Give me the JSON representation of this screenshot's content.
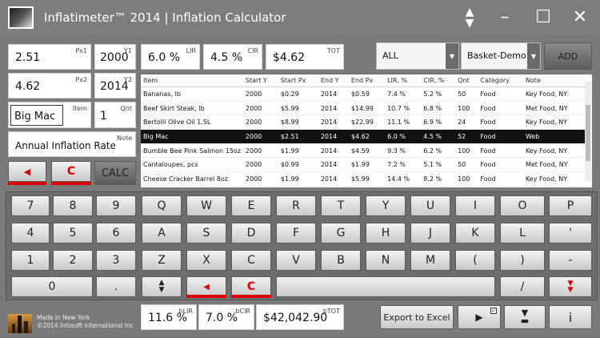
{
  "titlebar": {
    "title": "Inflatimeter™ 2014 | Inflation Calculator"
  },
  "inputs": {
    "px1": {
      "label": "Px1",
      "value": "2.51"
    },
    "y1": {
      "label": "Y1",
      "value": "2000"
    },
    "px2": {
      "label": "Px2",
      "value": "4.62"
    },
    "y2": {
      "label": "Y2",
      "value": "2014"
    },
    "item": {
      "label": "Item",
      "value": "Big Mac"
    },
    "qnt": {
      "label": "Qnt",
      "value": "1"
    },
    "note": {
      "label": "Note",
      "value": "Annual Inflation Rate"
    }
  },
  "results": {
    "lir": {
      "label": "LIR",
      "value": "6.0 %"
    },
    "cir": {
      "label": "CIR",
      "value": "4.5 %"
    },
    "tot": {
      "label": "TOT",
      "value": "$4.62"
    }
  },
  "basket": {
    "filter_selected": "ALL",
    "basket_selected": "Basket-Demo",
    "add_label": "ADD"
  },
  "actions": {
    "calc_label": "CALC",
    "clear_label": "C"
  },
  "table": {
    "columns": [
      "Item",
      "Start Y",
      "Start Px",
      "End Y",
      "End Px",
      "LIR, %",
      "CIR, %",
      "Qnt",
      "Category",
      "Note"
    ],
    "rows": [
      [
        "Bananas, lb",
        "2000",
        "$0.29",
        "2014",
        "$0.59",
        "7.4 %",
        "5.2 %",
        "50",
        "Food",
        "Key Food, NY"
      ],
      [
        "Beef Skirt Steak, lb",
        "2000",
        "$5.99",
        "2014",
        "$14.99",
        "10.7 %",
        "6.8 %",
        "100",
        "Food",
        "Met Food, NY"
      ],
      [
        "Bertolli Olive Oil 1.5L",
        "2000",
        "$8.99",
        "2014",
        "$22.99",
        "11.1 %",
        "6.9 %",
        "24",
        "Food",
        "Key Food, NY"
      ],
      [
        "Big Mac",
        "2000",
        "$2.51",
        "2014",
        "$4.62",
        "6.0 %",
        "4.5 %",
        "52",
        "Food",
        "Web"
      ],
      [
        "Bumble Bee Pink Salmon 15oz",
        "2000",
        "$1.99",
        "2014",
        "$4.59",
        "9.3 %",
        "6.2 %",
        "100",
        "Food",
        "Key Food, NY"
      ],
      [
        "Cantaloupes, pcs",
        "2000",
        "$0.99",
        "2014",
        "$1.99",
        "7.2 %",
        "5.1 %",
        "50",
        "Food",
        "Met Food, NY"
      ],
      [
        "Cheese Cracker Barrel 8oz",
        "2000",
        "$1.99",
        "2014",
        "$5.99",
        "14.4 %",
        "8.2 %",
        "100",
        "Food",
        "Key Food, NY"
      ]
    ]
  },
  "keypad": {
    "numeric": [
      "7",
      "8",
      "9",
      "4",
      "5",
      "6",
      "1",
      "2",
      "3",
      "0",
      "."
    ],
    "row1": [
      "Q",
      "W",
      "E",
      "R",
      "T",
      "Y",
      "U",
      "I",
      "O",
      "P"
    ],
    "row2": [
      "A",
      "S",
      "D",
      "F",
      "G",
      "H",
      "J",
      "K",
      "L",
      "'"
    ],
    "row3": [
      "Z",
      "X",
      "C",
      "V",
      "B",
      "N",
      "M",
      "(",
      ")",
      "-"
    ],
    "row4": [
      "C",
      "/"
    ]
  },
  "footer": {
    "brand_line1": "Made in New York",
    "brand_line2": "©2014 Infosoft International Inc",
    "blir": {
      "label": "bLIR",
      "value": "11.6 %"
    },
    "bcir": {
      "label": "bCIR",
      "value": "7.0 %"
    },
    "btot": {
      "label": "bTOT",
      "value": "$42,042.90"
    },
    "export_label": "Export to Excel"
  },
  "colors": {
    "accent_red": "#dd0000",
    "selected_row": "#111111"
  }
}
